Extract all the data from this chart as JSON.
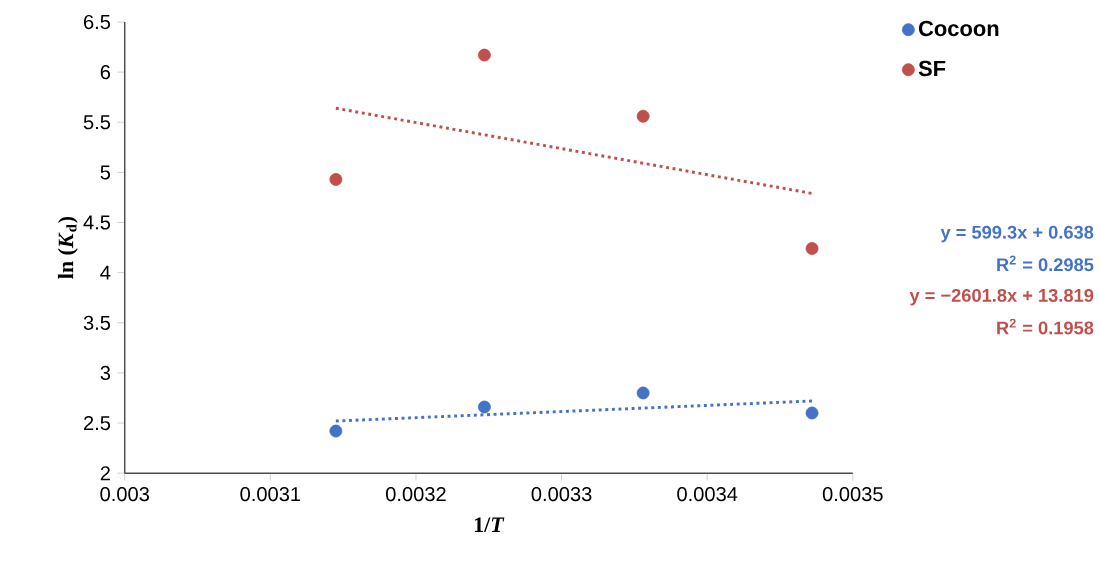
{
  "chart_data": {
    "type": "scatter",
    "xlabel": "1/*T*",
    "ylabel": "ln (*K*$_{d}$)",
    "xlim": [
      0.003,
      0.0035
    ],
    "xticks": [
      0.003,
      0.0031,
      0.0032,
      0.0033,
      0.0034,
      0.0035
    ],
    "ylim": [
      2,
      6.5
    ],
    "yticks": [
      2,
      2.5,
      3,
      3.5,
      4,
      4.5,
      5,
      5.5,
      6,
      6.5
    ],
    "marker": "circle",
    "legend": "top right",
    "grid": false,
    "series": [
      {
        "name": "Cocoon",
        "color": "#4472c4",
        "x": [
          0.003145,
          0.003247,
          0.003356,
          0.003472
        ],
        "values": [
          2.42,
          2.66,
          2.8,
          2.6
        ]
      },
      {
        "name": "SF",
        "color": "#c0504d",
        "x": [
          0.003145,
          0.003247,
          0.003356,
          0.003472
        ],
        "values": [
          4.93,
          6.17,
          5.56,
          4.24
        ]
      },
      {
        "type": "line",
        "line_style": "dotted",
        "marker": "none",
        "color": "#4472c4",
        "x": [
          0.003145,
          0.003472
        ],
        "values": [
          2.52,
          2.72
        ]
      },
      {
        "type": "line",
        "line_style": "dotted",
        "marker": "none",
        "color": "#c0504d",
        "x": [
          0.003145,
          0.003472
        ],
        "values": [
          5.64,
          4.79
        ]
      }
    ],
    "annotations": [
      "y = 599.3x + 0.638",
      "R$^{2}$ = 0.2985",
      "y = −2601.8x + 13.819",
      "R$^{2}$ = 0.1958"
    ]
  }
}
